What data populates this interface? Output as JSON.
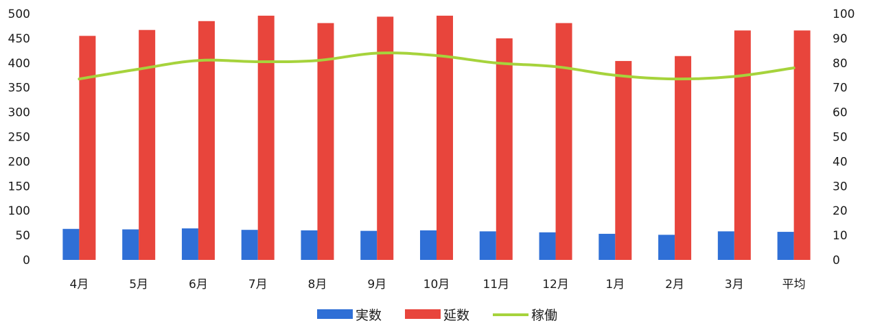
{
  "chart_data": {
    "type": "bar",
    "categories": [
      "4月",
      "5月",
      "6月",
      "7月",
      "8月",
      "9月",
      "10月",
      "11月",
      "12月",
      "1月",
      "2月",
      "3月",
      "平均"
    ],
    "series": [
      {
        "name": "実数",
        "type": "bar",
        "axis": "left",
        "color": "#2f6fd6",
        "values": [
          63,
          62,
          64,
          61,
          60,
          59,
          60,
          58,
          56,
          53,
          51,
          58,
          57
        ]
      },
      {
        "name": "延数",
        "type": "bar",
        "axis": "left",
        "color": "#e8453c",
        "values": [
          455,
          467,
          485,
          496,
          481,
          494,
          496,
          450,
          481,
          404,
          414,
          466,
          466
        ]
      },
      {
        "name": "稼働",
        "type": "line",
        "axis": "right",
        "color": "#a6d33c",
        "values": [
          73.5,
          77.5,
          81,
          80.5,
          81,
          84,
          83,
          80,
          78.5,
          75,
          73.5,
          74.5,
          78
        ]
      }
    ],
    "y_left": {
      "min": 0,
      "max": 500,
      "ticks": [
        "0",
        "50",
        "100",
        "150",
        "200",
        "250",
        "300",
        "350",
        "400",
        "450",
        "500"
      ]
    },
    "y_right": {
      "min": 0,
      "max": 100,
      "ticks": [
        "0",
        "10",
        "20",
        "30",
        "40",
        "50",
        "60",
        "70",
        "80",
        "90",
        "100"
      ]
    },
    "grid": false,
    "legend": "bottom-center"
  }
}
